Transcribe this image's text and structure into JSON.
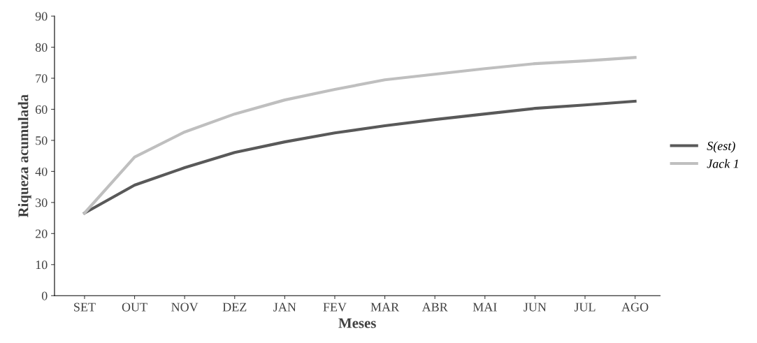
{
  "chart_data": {
    "type": "line",
    "xlabel": "Meses",
    "ylabel": "Riqueza acumulada",
    "categories": [
      "SET",
      "OUT",
      "NOV",
      "DEZ",
      "JAN",
      "FEV",
      "MAR",
      "ABR",
      "MAI",
      "JUN",
      "JUL",
      "AGO"
    ],
    "series": [
      {
        "name": "S(est)",
        "color": "#595959",
        "values": [
          26.6,
          35.6,
          41.2,
          46.1,
          49.5,
          52.4,
          54.7,
          56.7,
          58.5,
          60.3,
          61.4,
          62.6
        ]
      },
      {
        "name": "Jack 1",
        "color": "#bfbfbf",
        "values": [
          26.6,
          44.6,
          52.7,
          58.5,
          63.0,
          66.4,
          69.5,
          71.3,
          73.1,
          74.7,
          75.6,
          76.7
        ]
      }
    ],
    "ylim": [
      0,
      90
    ],
    "yticks": [
      0,
      10,
      20,
      30,
      40,
      50,
      60,
      70,
      80,
      90
    ],
    "grid": false,
    "legend": "right",
    "marker": "none",
    "line_style": "solid"
  }
}
